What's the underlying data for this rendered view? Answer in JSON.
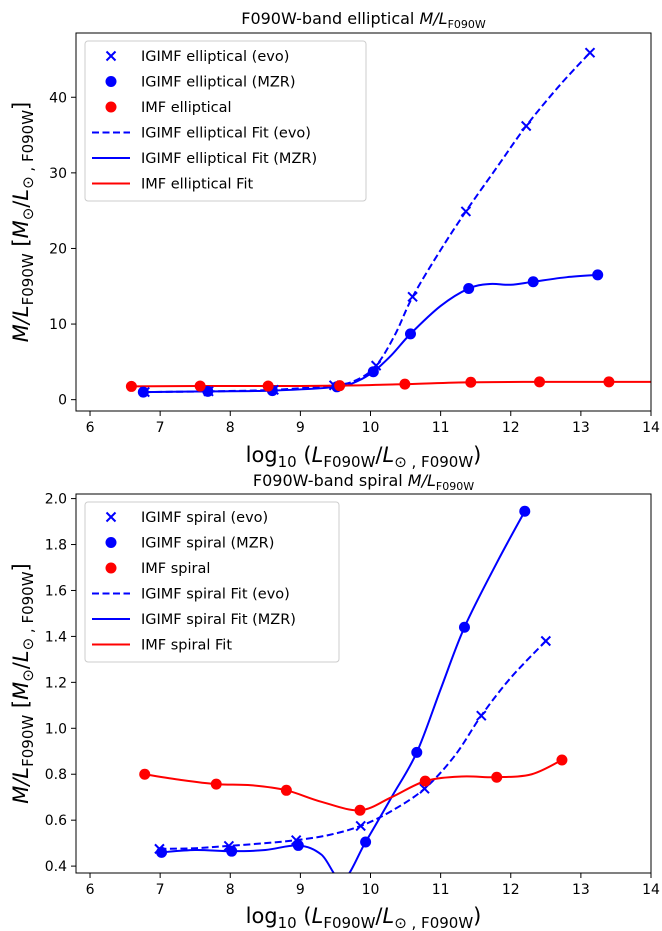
{
  "chart_data": [
    {
      "type": "line",
      "title": "F090W-band elliptical",
      "title_math": "M/L",
      "title_math_sub": "F090W",
      "xlabel": {
        "pre": "log",
        "pre_sub": "10",
        "open": " (",
        "num": "L",
        "num_sub": "F090W",
        "slash": "/",
        "den": "L",
        "den_sub": "⊙ , F090W",
        "close": ")"
      },
      "ylabel": {
        "open": "M/L",
        "open_sub": "F090W",
        "bracket": " [",
        "num": "M",
        "num_sub": "⊙",
        "slash": "/",
        "den": "L",
        "den_sub": "⊙ , F090W",
        "close": "]"
      },
      "xlim": [
        5.8,
        14
      ],
      "ylim": [
        -1.5,
        48.5
      ],
      "xticks": [
        "6",
        "7",
        "8",
        "9",
        "10",
        "11",
        "12",
        "13",
        "14"
      ],
      "yticks": [
        "0",
        "10",
        "20",
        "30",
        "40"
      ],
      "legend_position": "upper-left",
      "series": [
        {
          "name": "IGIMF elliptical (evo)",
          "marker": "x",
          "color": "#0000ff",
          "x": [
            6.78,
            7.69,
            8.62,
            9.48,
            10.08,
            10.6,
            11.36,
            12.22,
            13.13
          ],
          "y": [
            1.0,
            1.1,
            1.3,
            1.9,
            4.5,
            13.6,
            24.9,
            36.2,
            45.9
          ]
        },
        {
          "name": "IGIMF elliptical (MZR)",
          "marker": "o",
          "color": "#0000ff",
          "x": [
            6.76,
            7.68,
            8.6,
            9.52,
            10.04,
            10.57,
            11.4,
            12.32,
            13.24
          ],
          "y": [
            1.0,
            1.1,
            1.2,
            1.7,
            3.7,
            8.7,
            14.7,
            15.6,
            16.5
          ]
        },
        {
          "name": "IMF elliptical",
          "marker": "o",
          "color": "#ff0000",
          "x": [
            6.59,
            7.57,
            8.54,
            9.56,
            10.49,
            11.43,
            12.41,
            13.4
          ],
          "y": [
            1.75,
            1.8,
            1.8,
            1.85,
            2.05,
            2.3,
            2.35,
            2.35
          ]
        },
        {
          "name": "IGIMF elliptical Fit (evo)",
          "line": "dashed",
          "color": "#0000ff",
          "x": [
            6.78,
            7.69,
            8.62,
            9.48,
            9.8,
            10.08,
            10.35,
            10.6,
            11.0,
            11.36,
            11.8,
            12.22,
            12.7,
            13.13
          ],
          "y": [
            1.0,
            1.1,
            1.3,
            1.9,
            2.6,
            4.5,
            8.6,
            13.6,
            19.8,
            24.9,
            30.7,
            36.2,
            41.6,
            45.9
          ]
        },
        {
          "name": "IGIMF elliptical Fit (MZR)",
          "line": "solid",
          "color": "#0000ff",
          "x": [
            6.76,
            7.68,
            8.6,
            9.52,
            9.8,
            10.04,
            10.3,
            10.57,
            11.0,
            11.4,
            11.7,
            12.0,
            12.32,
            12.8,
            13.24
          ],
          "y": [
            1.0,
            1.1,
            1.2,
            1.7,
            2.4,
            3.7,
            5.9,
            8.7,
            12.4,
            14.7,
            15.3,
            15.2,
            15.6,
            16.2,
            16.5
          ]
        },
        {
          "name": "IMF elliptical Fit",
          "line": "solid",
          "color": "#ff0000",
          "x": [
            6.59,
            7.57,
            8.54,
            9.56,
            10.49,
            11.43,
            12.41,
            13.4,
            14.0
          ],
          "y": [
            1.75,
            1.8,
            1.8,
            1.85,
            2.05,
            2.3,
            2.35,
            2.35,
            2.35
          ]
        }
      ]
    },
    {
      "type": "line",
      "title": "F090W-band spiral",
      "title_math": "M/L",
      "title_math_sub": "F090W",
      "xlabel": {
        "pre": "log",
        "pre_sub": "10",
        "open": " (",
        "num": "L",
        "num_sub": "F090W",
        "slash": "/",
        "den": "L",
        "den_sub": "⊙ , F090W",
        "close": ")"
      },
      "ylabel": {
        "open": "M/L",
        "open_sub": "F090W",
        "bracket": " [",
        "num": "M",
        "num_sub": "⊙",
        "slash": "/",
        "den": "L",
        "den_sub": "⊙ , F090W",
        "close": "]"
      },
      "xlim": [
        5.8,
        14
      ],
      "ylim": [
        0.37,
        2.02
      ],
      "xticks": [
        "6",
        "7",
        "8",
        "9",
        "10",
        "11",
        "12",
        "13",
        "14"
      ],
      "yticks": [
        "0.4",
        "0.6",
        "0.8",
        "1.0",
        "1.2",
        "1.4",
        "1.6",
        "1.8",
        "2.0"
      ],
      "legend_position": "upper-left",
      "series": [
        {
          "name": "IGIMF spiral (evo)",
          "marker": "x",
          "color": "#0000ff",
          "x": [
            6.99,
            7.98,
            8.94,
            9.86,
            10.77,
            11.58,
            12.5
          ],
          "y": [
            0.475,
            0.488,
            0.513,
            0.575,
            0.737,
            1.055,
            1.38
          ]
        },
        {
          "name": "IGIMF spiral (MZR)",
          "marker": "o",
          "color": "#0000ff",
          "x": [
            7.02,
            8.02,
            8.97,
            9.93,
            10.66,
            11.34,
            12.2
          ],
          "y": [
            0.46,
            0.465,
            0.49,
            0.505,
            0.895,
            1.44,
            1.945
          ]
        },
        {
          "name": "IMF spiral",
          "marker": "o",
          "color": "#ff0000",
          "x": [
            6.78,
            7.8,
            8.8,
            9.85,
            10.78,
            11.8,
            12.73
          ],
          "y": [
            0.8,
            0.757,
            0.73,
            0.643,
            0.77,
            0.787,
            0.862
          ]
        },
        {
          "name": "IGIMF spiral Fit (evo)",
          "line": "dashed",
          "color": "#0000ff",
          "x": [
            6.99,
            7.5,
            7.98,
            8.5,
            8.94,
            9.4,
            9.86,
            10.3,
            10.77,
            11.2,
            11.58,
            12.0,
            12.5
          ],
          "y": [
            0.475,
            0.478,
            0.488,
            0.5,
            0.513,
            0.535,
            0.575,
            0.64,
            0.737,
            0.88,
            1.055,
            1.22,
            1.38
          ]
        },
        {
          "name": "IGIMF spiral Fit (MZR)",
          "line": "solid",
          "color": "#0000ff",
          "x": [
            7.02,
            7.5,
            8.02,
            8.5,
            8.97,
            9.3,
            9.6,
            9.93,
            10.3,
            10.66,
            11.0,
            11.34,
            11.8,
            12.2
          ],
          "y": [
            0.46,
            0.47,
            0.465,
            0.47,
            0.49,
            0.45,
            0.34,
            0.505,
            0.7,
            0.895,
            1.17,
            1.44,
            1.72,
            1.945
          ]
        },
        {
          "name": "IMF spiral Fit",
          "line": "solid",
          "color": "#ff0000",
          "x": [
            6.78,
            7.3,
            7.8,
            8.3,
            8.8,
            9.3,
            9.85,
            10.3,
            10.78,
            11.3,
            11.8,
            12.3,
            12.73
          ],
          "y": [
            0.8,
            0.775,
            0.757,
            0.752,
            0.73,
            0.68,
            0.643,
            0.7,
            0.77,
            0.79,
            0.787,
            0.8,
            0.862
          ]
        }
      ]
    }
  ]
}
